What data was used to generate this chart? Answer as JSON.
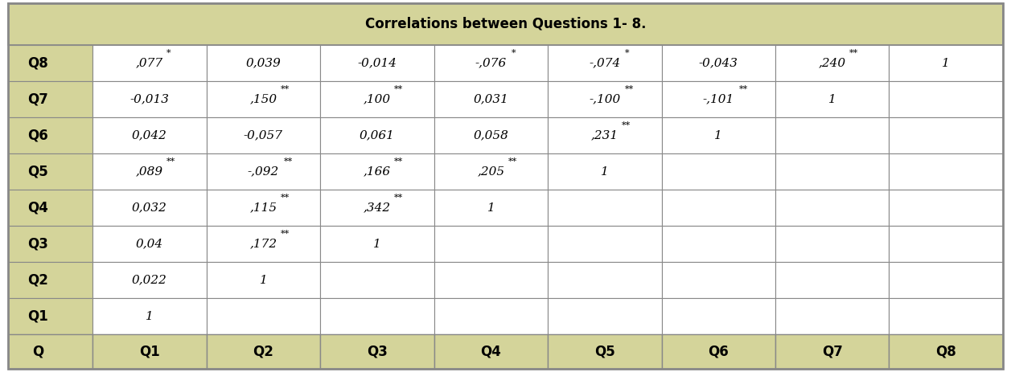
{
  "title": "Correlations between Questions 1- 8.",
  "header_bg": "#d4d49a",
  "cell_bg_white": "#ffffff",
  "border_color": "#888888",
  "title_fontsize": 12,
  "cell_fontsize": 11,
  "label_fontsize": 12,
  "row_labels": [
    "Q8",
    "Q7",
    "Q6",
    "Q5",
    "Q4",
    "Q3",
    "Q2",
    "Q1",
    "Q"
  ],
  "col_labels": [
    "Q1",
    "Q2",
    "Q3",
    "Q4",
    "Q5",
    "Q6",
    "Q7",
    "Q8"
  ],
  "rows": [
    [
      ",077*",
      "0,039",
      "-0,014",
      "-,076*",
      "-,074*",
      "-0,043",
      ",240**",
      "1"
    ],
    [
      "-0,013",
      ",150**",
      ",100**",
      "0,031",
      "-,100**",
      "-,101**",
      "1",
      ""
    ],
    [
      "0,042",
      "-0,057",
      "0,061",
      "0,058",
      ",231**",
      "1",
      "",
      ""
    ],
    [
      ",089**",
      "-,092**",
      ",166**",
      ",205**",
      "1",
      "",
      "",
      ""
    ],
    [
      "0,032",
      ",115**",
      ",342**",
      "1",
      "",
      "",
      "",
      ""
    ],
    [
      "0,04",
      ",172**",
      "1",
      "",
      "",
      "",
      "",
      ""
    ],
    [
      "0,022",
      "1",
      "",
      "",
      "",
      "",
      "",
      ""
    ],
    [
      "1",
      "",
      "",
      "",
      "",
      "",
      "",
      ""
    ]
  ]
}
